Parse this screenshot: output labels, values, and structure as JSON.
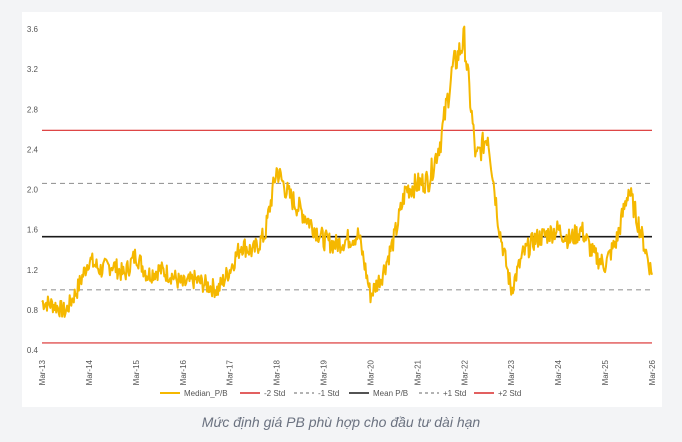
{
  "chart_data": {
    "type": "line",
    "title": "",
    "xlabel": "",
    "ylabel": "",
    "ylim": [
      0.4,
      3.6
    ],
    "y_ticks": [
      "0.4",
      "0.8",
      "1.2",
      "1.6",
      "2.0",
      "2.4",
      "2.8",
      "3.2",
      "3.6"
    ],
    "x_ticks": [
      "Mar-13",
      "Mar-14",
      "Mar-15",
      "Mar-16",
      "Mar-17",
      "Mar-18",
      "Mar-19",
      "Mar-20",
      "Mar-21",
      "Mar-22",
      "Mar-23",
      "Mar-24",
      "Mar-25",
      "Mar-26"
    ],
    "grid": false,
    "legend_position": "bottom",
    "series": [
      {
        "name": "Median_P/B",
        "color": "#f5b800",
        "x": [
          "Mar-13",
          "Jun-13",
          "Sep-13",
          "Dec-13",
          "Mar-14",
          "Jun-14",
          "Sep-14",
          "Dec-14",
          "Mar-15",
          "Jun-15",
          "Sep-15",
          "Dec-15",
          "Mar-16",
          "Jun-16",
          "Sep-16",
          "Dec-16",
          "Mar-17",
          "Jun-17",
          "Sep-17",
          "Dec-17",
          "Mar-18",
          "Jun-18",
          "Sep-18",
          "Dec-18",
          "Mar-19",
          "Jun-19",
          "Sep-19",
          "Dec-19",
          "Mar-20",
          "Jun-20",
          "Sep-20",
          "Dec-20",
          "Mar-21",
          "Jun-21",
          "Sep-21",
          "Dec-21",
          "Mar-22",
          "Jun-22",
          "Sep-22",
          "Dec-22",
          "Mar-23",
          "Jun-23",
          "Sep-23",
          "Dec-23",
          "Mar-24",
          "Jun-24",
          "Sep-24",
          "Dec-24",
          "Mar-25",
          "Jun-25",
          "Sep-25",
          "Dec-25",
          "Mar-26"
        ],
        "values": [
          0.88,
          0.85,
          0.78,
          1.0,
          1.3,
          1.2,
          1.25,
          1.15,
          1.35,
          1.15,
          1.2,
          1.15,
          1.05,
          1.1,
          1.05,
          1.0,
          1.2,
          1.45,
          1.38,
          1.55,
          2.2,
          1.95,
          1.8,
          1.65,
          1.5,
          1.45,
          1.5,
          1.55,
          0.95,
          1.15,
          1.5,
          2.0,
          2.05,
          2.1,
          2.5,
          3.2,
          3.5,
          2.3,
          2.55,
          1.6,
          1.0,
          1.35,
          1.5,
          1.55,
          1.6,
          1.5,
          1.6,
          1.35,
          1.25,
          1.5,
          2.0,
          1.6,
          1.15
        ]
      },
      {
        "name": "-2 Std",
        "color": "#d92b2b",
        "dash": "",
        "value": 0.47
      },
      {
        "name": "-1 Std",
        "color": "#9a9a9a",
        "dash": "5,4",
        "value": 1.0
      },
      {
        "name": "Mean P/B",
        "color": "#1a1a1a",
        "dash": "",
        "value": 1.53
      },
      {
        "name": "+1 Std",
        "color": "#9a9a9a",
        "dash": "5,4",
        "value": 2.06
      },
      {
        "name": "+2 Std",
        "color": "#d92b2b",
        "dash": "",
        "value": 2.59
      }
    ]
  },
  "caption": "Mức định giá PB phù hợp cho đầu tư dài hạn"
}
